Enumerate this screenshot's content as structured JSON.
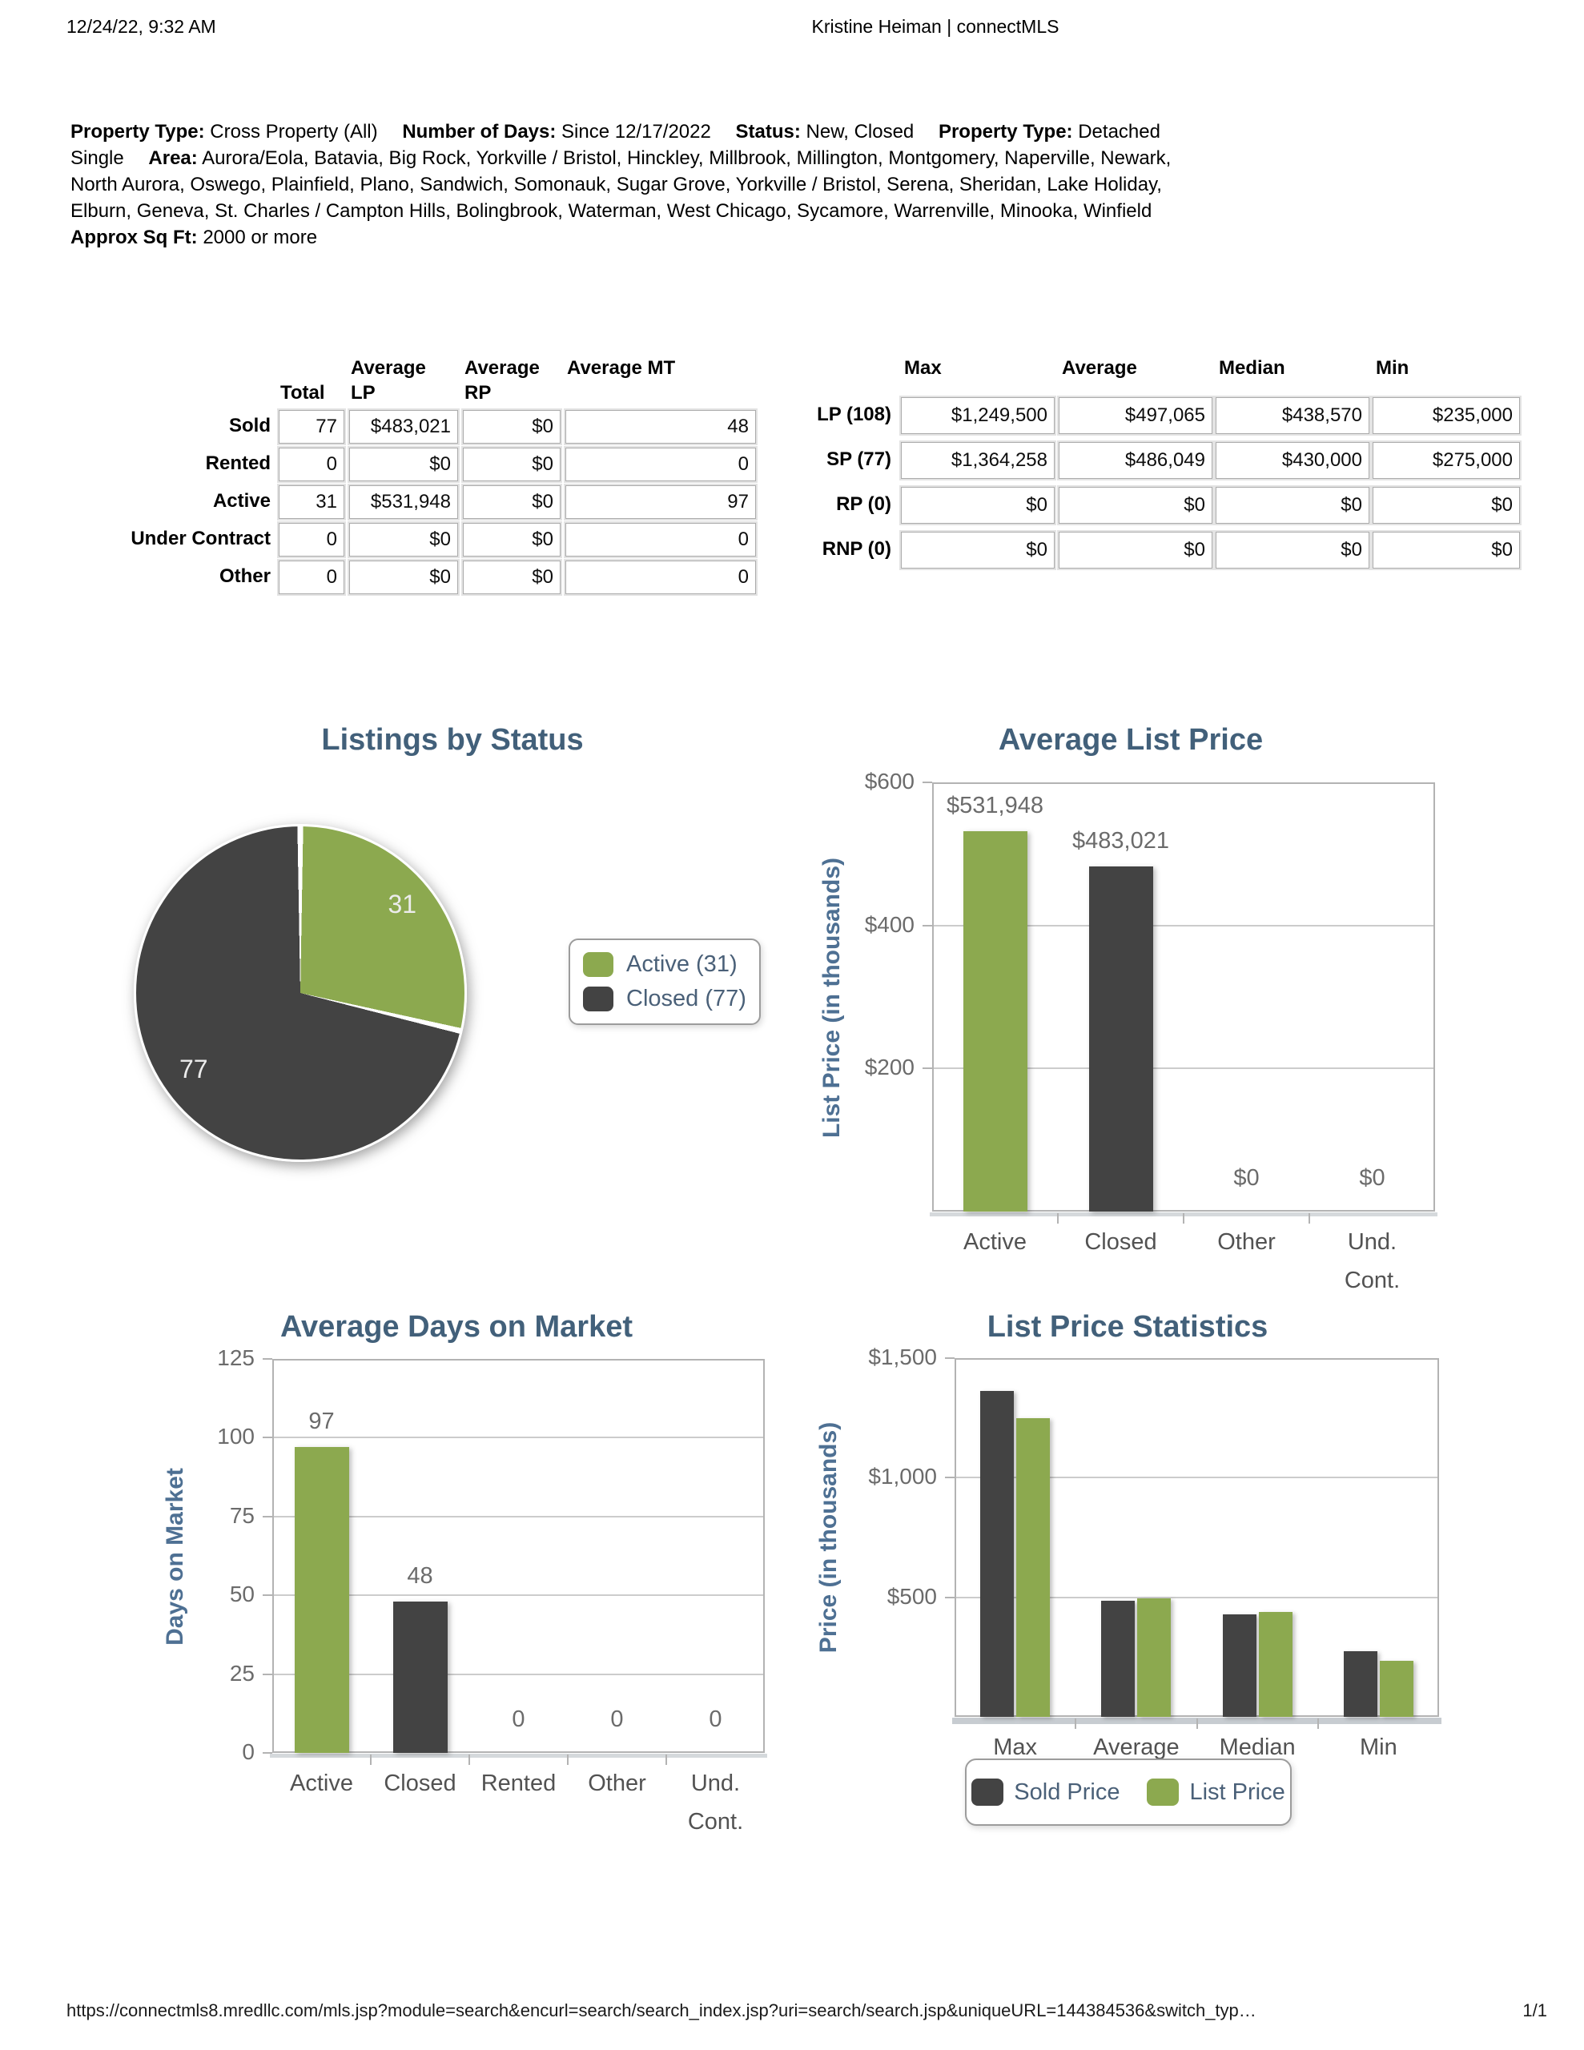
{
  "header": {
    "datetime": "12/24/22, 9:32 AM",
    "title": "Kristine Heiman | connectMLS"
  },
  "criteria": [
    {
      "label": "Property Type:",
      "value": "Cross Property (All)"
    },
    {
      "label": "Number of Days:",
      "value": "Since 12/17/2022"
    },
    {
      "label": "Status:",
      "value": "New, Closed"
    },
    {
      "label": "Property Type:",
      "value": "Detached Single"
    },
    {
      "label": "Area:",
      "value": "Aurora/Eola, Batavia, Big Rock, Yorkville / Bristol, Hinckley, Millbrook, Millington, Montgomery, Naperville, Newark, North Aurora, Oswego, Plainfield, Plano, Sandwich, Somonauk, Sugar Grove, Yorkville / Bristol, Serena, Sheridan, Lake Holiday, Elburn, Geneva, St. Charles / Campton Hills, Bolingbrook, Waterman, West Chicago, Sycamore, Warrenville, Minooka, Winfield"
    },
    {
      "label": "Approx Sq Ft:",
      "value": "2000 or more"
    }
  ],
  "status_table": {
    "columns": [
      {
        "top": "",
        "bottom": "Total"
      },
      {
        "top": "Average",
        "bottom": "LP"
      },
      {
        "top": "Average",
        "bottom": "RP"
      },
      {
        "top": "Average MT",
        "bottom": ""
      }
    ],
    "rows": [
      {
        "label": "Sold",
        "values": [
          "77",
          "$483,021",
          "$0",
          "48"
        ]
      },
      {
        "label": "Rented",
        "values": [
          "0",
          "$0",
          "$0",
          "0"
        ]
      },
      {
        "label": "Active",
        "values": [
          "31",
          "$531,948",
          "$0",
          "97"
        ]
      },
      {
        "label": "Under Contract",
        "values": [
          "0",
          "$0",
          "$0",
          "0"
        ]
      },
      {
        "label": "Other",
        "values": [
          "0",
          "$0",
          "$0",
          "0"
        ]
      }
    ]
  },
  "price_table": {
    "columns": [
      "Max",
      "Average",
      "Median",
      "Min"
    ],
    "rows": [
      {
        "label": "LP (108)",
        "values": [
          "$1,249,500",
          "$497,065",
          "$438,570",
          "$235,000"
        ]
      },
      {
        "label": "SP (77)",
        "values": [
          "$1,364,258",
          "$486,049",
          "$430,000",
          "$275,000"
        ]
      },
      {
        "label": "RP (0)",
        "values": [
          "$0",
          "$0",
          "$0",
          "$0"
        ]
      },
      {
        "label": "RNP (0)",
        "values": [
          "$0",
          "$0",
          "$0",
          "$0"
        ]
      }
    ]
  },
  "chart_data": [
    {
      "type": "pie",
      "title": "Listings by Status",
      "labels": [
        "Active",
        "Closed"
      ],
      "values": [
        31,
        77
      ],
      "colors": [
        "#8CA94F",
        "#434343"
      ],
      "slice_labels": [
        "31",
        "77"
      ],
      "legend": [
        "Active (31)",
        "Closed (77)"
      ],
      "legend_position": "right"
    },
    {
      "type": "bar",
      "title": "Average List Price",
      "ylabel": "List Price (in thousands)",
      "categories": [
        "Active",
        "Closed",
        "Other",
        "Und.\nCont."
      ],
      "values": [
        531.948,
        483.021,
        0,
        0
      ],
      "bar_colors": [
        "#8CA94F",
        "#434343",
        "#8CA94F",
        "#434343"
      ],
      "data_labels": [
        "$531,948",
        "$483,021",
        "$0",
        "$0"
      ],
      "ylim": [
        0,
        600
      ],
      "yticks": [
        600,
        400,
        200
      ],
      "ytick_labels": [
        "$600",
        "$400",
        "$200"
      ],
      "grid": true
    },
    {
      "type": "bar",
      "title": "Average Days on Market",
      "ylabel": "Days on Market",
      "categories": [
        "Active",
        "Closed",
        "Rented",
        "Other",
        "Und.\nCont."
      ],
      "values": [
        97,
        48,
        0,
        0,
        0
      ],
      "bar_colors": [
        "#8CA94F",
        "#434343",
        "#8CA94F",
        "#434343",
        "#8CA94F"
      ],
      "data_labels": [
        "97",
        "48",
        "0",
        "0",
        "0"
      ],
      "ylim": [
        0,
        125
      ],
      "yticks": [
        125,
        100,
        75,
        50,
        25,
        0
      ],
      "ytick_labels": [
        "125",
        "100",
        "75",
        "50",
        "25",
        "0"
      ],
      "grid": true
    },
    {
      "type": "grouped_bar",
      "title": "List Price Statistics",
      "ylabel": "Price (in thousands)",
      "categories": [
        "Max",
        "Average",
        "Median",
        "Min"
      ],
      "series": [
        {
          "name": "Sold Price",
          "color": "#434343",
          "values": [
            1364.258,
            486.049,
            430,
            275
          ]
        },
        {
          "name": "List Price",
          "color": "#8CA94F",
          "values": [
            1249.5,
            497.065,
            438.57,
            235
          ]
        }
      ],
      "ylim": [
        0,
        1500
      ],
      "yticks": [
        1500,
        1000,
        500
      ],
      "ytick_labels": [
        "$1,500",
        "$1,000",
        "$500"
      ],
      "grid": true,
      "legend_position": "bottom"
    }
  ],
  "footer": {
    "url": "https://connectmls8.mredllc.com/mls.jsp?module=search&encurl=search/search_index.jsp?uri=search/search.jsp&uniqueURL=144384536&switch_typ…",
    "page": "1/1"
  },
  "colors": {
    "green": "#8CA94F",
    "dark": "#434343",
    "title_blue": "#42607A",
    "axis_blue": "#4E7093",
    "tick_gray": "#6B6B6B",
    "label_gray": "#525252",
    "grid": "#CCCCCC",
    "plot_border": "#B3B3B3",
    "legend_border": "#9C9C9C",
    "legend_text": "#4A6078"
  }
}
